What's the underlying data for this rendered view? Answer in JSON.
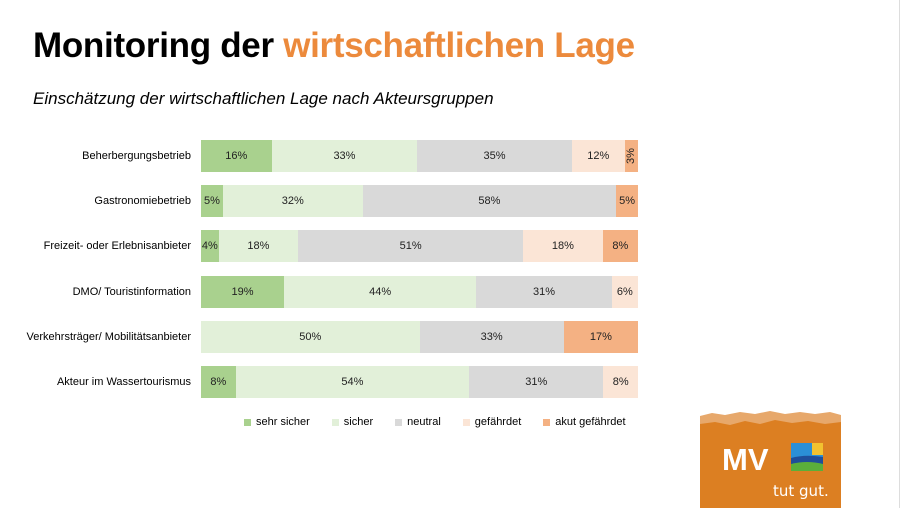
{
  "title": {
    "part1": "Monitoring der ",
    "part2": "wirtschaftlichen Lage"
  },
  "subtitle": "Einschätzung der wirtschaftlichen Lage nach Akteursgruppen",
  "colors": {
    "accent": "#ec8a3c"
  },
  "chart_data": {
    "type": "bar",
    "orientation": "horizontal",
    "stacked": true,
    "categories": [
      "Beherbergungsbetrieb",
      "Gastronomiebetrieb",
      "Freizeit- oder Erlebnisanbieter",
      "DMO/ Touristinformation",
      "Verkehrsträger/ Mobilitätsanbieter",
      "Akteur im Wassertourismus"
    ],
    "series": [
      {
        "name": "sehr sicher",
        "color": "#a9d18e",
        "values": [
          16,
          5,
          4,
          19,
          0,
          8
        ]
      },
      {
        "name": "sicher",
        "color": "#e2f0d9",
        "values": [
          33,
          32,
          18,
          44,
          50,
          54
        ]
      },
      {
        "name": "neutral",
        "color": "#d9d9d9",
        "values": [
          35,
          58,
          51,
          31,
          33,
          31
        ]
      },
      {
        "name": "gefährdet",
        "color": "#fbe5d6",
        "values": [
          12,
          0,
          18,
          6,
          0,
          8
        ]
      },
      {
        "name": "akut gefährdet",
        "color": "#f4b183",
        "values": [
          3,
          5,
          8,
          0,
          17,
          0
        ]
      }
    ],
    "value_format": "%",
    "legend": "bottom",
    "grid": false
  },
  "logo": {
    "text": "MV",
    "tagline": "tut gut."
  }
}
